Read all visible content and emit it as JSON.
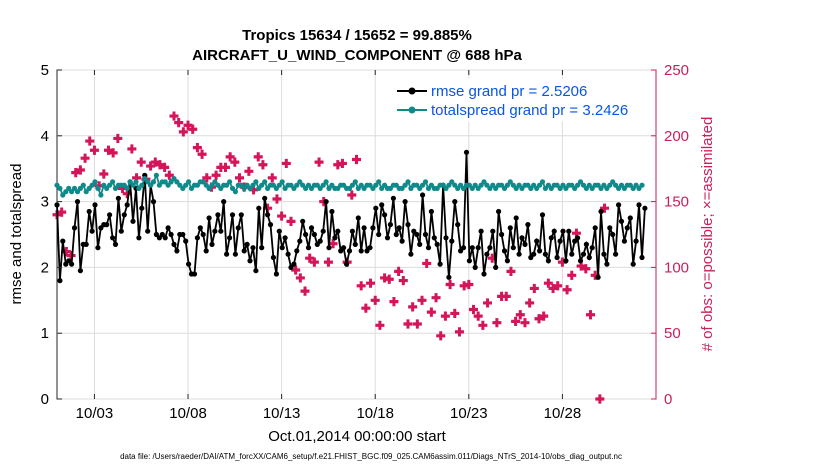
{
  "chart_data": {
    "type": "line",
    "title": "Tropics 15634 / 15652 = 99.885%",
    "subtitle": "AIRCRAFT_U_WIND_COMPONENT @ 688 hPa",
    "xlabel": "Oct.01,2014 00:00:00 start",
    "ylabel_left": "rmse and totalspread",
    "ylabel_right": "# of obs: o=possible; ×=assimilated",
    "xlim": [
      1.0,
      33.0
    ],
    "ylim_left": [
      0,
      5
    ],
    "ylim_right": [
      0,
      250
    ],
    "x_ticks": [
      3,
      8,
      13,
      18,
      23,
      28
    ],
    "x_tick_labels": [
      "10/03",
      "10/08",
      "10/13",
      "10/18",
      "10/23",
      "10/28"
    ],
    "y_ticks_left": [
      0,
      1,
      2,
      3,
      4,
      5
    ],
    "y_ticks_right": [
      0,
      50,
      100,
      150,
      200,
      250
    ],
    "grid": true,
    "legend": "top-right",
    "series": [
      {
        "name": "rmse grand pr = 2.5206",
        "color": "#000000",
        "axis": "left",
        "values": [
          2.95,
          1.8,
          2.4,
          2.05,
          2.1,
          2.05,
          2.6,
          3.0,
          1.95,
          2.35,
          2.35,
          2.85,
          2.55,
          2.95,
          2.3,
          2.6,
          2.65,
          2.65,
          2.8,
          2.45,
          2.35,
          3.05,
          2.55,
          2.8,
          2.95,
          3.3,
          2.7,
          3.2,
          2.45,
          2.9,
          3.4,
          2.55,
          3.25,
          3.0,
          2.5,
          2.45,
          2.5,
          2.45,
          2.6,
          2.5,
          2.35,
          2.25,
          2.5,
          2.5,
          2.4,
          2.05,
          1.9,
          1.9,
          2.45,
          2.6,
          2.5,
          2.25,
          2.75,
          2.35,
          2.55,
          2.8,
          2.55,
          3.0,
          2.2,
          2.45,
          2.8,
          2.2,
          2.6,
          2.8,
          2.25,
          2.35,
          2.1,
          2.3,
          1.95,
          2.9,
          2.3,
          3.05,
          2.8,
          2.65,
          2.15,
          1.9,
          2.55,
          2.3,
          2.45,
          2.2,
          2.0,
          2.05,
          2.25,
          2.4,
          2.7,
          2.5,
          2.3,
          2.6,
          2.5,
          2.35,
          2.4,
          2.55,
          3.0,
          2.3,
          2.85,
          2.45,
          2.55,
          2.25,
          2.3,
          2.05,
          2.25,
          2.55,
          2.35,
          2.75,
          2.25,
          2.6,
          2.25,
          2.3,
          2.6,
          2.9,
          2.5,
          2.95,
          2.8,
          2.45,
          2.65,
          3.05,
          2.5,
          2.6,
          2.4,
          3.0,
          2.65,
          2.2,
          2.55,
          2.5,
          2.35,
          3.1,
          2.5,
          2.3,
          2.85,
          2.45,
          2.35,
          2.05,
          3.25,
          2.45,
          1.85,
          2.4,
          3.0,
          2.65,
          2.25,
          2.3,
          3.75,
          2.1,
          2.3,
          2.0,
          2.3,
          2.55,
          1.9,
          2.2,
          2.3,
          2.55,
          2.0,
          2.85,
          2.5,
          2.25,
          2.1,
          2.6,
          2.3,
          2.75,
          2.2,
          2.45,
          2.35,
          2.65,
          2.15,
          2.2,
          2.4,
          2.25,
          2.8,
          2.2,
          2.1,
          2.45,
          2.55,
          2.15,
          2.4,
          2.55,
          2.1,
          2.55,
          2.2,
          2.4,
          2.45,
          2.1,
          2.2,
          2.35,
          2.15,
          2.3,
          2.6,
          1.85,
          2.85,
          2.2,
          2.05,
          2.6,
          2.5,
          2.2,
          2.95,
          2.7,
          2.4,
          2.6,
          2.75,
          2.05,
          2.4,
          2.95,
          2.15,
          2.9
        ],
        "x_start": 1.0,
        "x_step": 0.15625
      },
      {
        "name": "totalspread grand pr = 3.2426",
        "color": "#0e8a8a",
        "axis": "left",
        "values": [
          3.25,
          3.2,
          3.1,
          3.15,
          3.2,
          3.15,
          3.2,
          3.15,
          3.2,
          3.25,
          3.15,
          3.2,
          3.25,
          3.3,
          3.2,
          3.1,
          3.25,
          3.2,
          3.25,
          3.3,
          3.2,
          3.25,
          3.25,
          3.25,
          3.2,
          3.3,
          3.25,
          3.3,
          3.2,
          3.25,
          3.35,
          3.3,
          3.25,
          3.3,
          3.4,
          3.25,
          3.3,
          3.3,
          3.25,
          3.3,
          3.35,
          3.3,
          3.25,
          3.2,
          3.25,
          3.3,
          3.2,
          3.25,
          3.25,
          3.3,
          3.3,
          3.25,
          3.2,
          3.25,
          3.3,
          3.25,
          3.2,
          3.25,
          3.25,
          3.3,
          3.2,
          3.15,
          3.25,
          3.25,
          3.2,
          3.25,
          3.2,
          3.25,
          3.3,
          3.2,
          3.25,
          3.3,
          3.2,
          3.25,
          3.25,
          3.2,
          3.25,
          3.3,
          3.2,
          3.25,
          3.25,
          3.2,
          3.25,
          3.3,
          3.25,
          3.2,
          3.25,
          3.2,
          3.25,
          3.25,
          3.2,
          3.25,
          3.3,
          3.2,
          3.25,
          3.2,
          3.2,
          3.25,
          3.25,
          3.2,
          3.2,
          3.25,
          3.3,
          3.2,
          3.25,
          3.2,
          3.25,
          3.25,
          3.2,
          3.25,
          3.3,
          3.2,
          3.25,
          3.2,
          3.2,
          3.25,
          3.25,
          3.2,
          3.2,
          3.25,
          3.3,
          3.2,
          3.25,
          3.25,
          3.2,
          3.25,
          3.3,
          3.2,
          3.25,
          3.2,
          3.2,
          3.25,
          3.25,
          3.2,
          3.25,
          3.3,
          3.25,
          3.2,
          3.25,
          3.2,
          3.25,
          3.25,
          3.2,
          3.25,
          3.2,
          3.25,
          3.3,
          3.25,
          3.2,
          3.25,
          3.2,
          3.25,
          3.25,
          3.2,
          3.25,
          3.3,
          3.25,
          3.2,
          3.25,
          3.2,
          3.25,
          3.25,
          3.2,
          3.25,
          3.2,
          3.25,
          3.3,
          3.2,
          3.25,
          3.2,
          3.25,
          3.25,
          3.2,
          3.25,
          3.2,
          3.25,
          3.25,
          3.2,
          3.25,
          3.3,
          3.25,
          3.2,
          3.25,
          3.2,
          3.25,
          3.25,
          3.2,
          3.25,
          3.2,
          3.25,
          3.3,
          3.25,
          3.2,
          3.25,
          3.2,
          3.25,
          3.25,
          3.2,
          3.25,
          3.2,
          3.25
        ],
        "x_start": 1.0,
        "x_step": 0.15625
      }
    ],
    "obs_counts": {
      "color": "#d4155a",
      "axis": "right",
      "x_start": 1.0,
      "x_step": 0.25,
      "values": [
        140,
        142,
        112,
        109,
        172,
        174,
        183,
        196,
        189,
        162,
        171,
        189,
        187,
        198,
        160,
        156,
        190,
        168,
        180,
        167,
        177,
        180,
        178,
        176,
        170,
        215,
        210,
        203,
        208,
        205,
        191,
        186,
        168,
        161,
        170,
        176,
        176,
        184,
        180,
        168,
        161,
        173,
        159,
        184,
        178,
        145,
        168,
        152,
        139,
        179,
        135,
        98,
        92,
        82,
        107,
        104,
        180,
        150,
        104,
        118,
        178,
        179,
        104,
        155,
        182,
        86,
        69,
        88,
        75,
        56,
        92,
        91,
        74,
        97,
        90,
        57,
        70,
        57,
        75,
        103,
        66,
        77,
        48,
        63,
        87,
        65,
        51,
        86,
        87,
        68,
        63,
        56,
        73,
        107,
        58,
        78,
        78,
        97,
        59,
        64,
        58,
        73,
        84,
        61,
        63,
        88,
        84,
        86,
        104,
        83,
        94,
        126,
        101,
        99,
        64,
        94,
        0,
        145
      ]
    },
    "legend_entries": [
      "rmse grand pr = 2.5206",
      "totalspread grand pr = 3.2426"
    ],
    "footer_note": "data file: /Users/raeder/DAI/ATM_forcXX/CAM6_setup/f.e21.FHIST_BGC.f09_025.CAM6assim.011/Diags_NTrS_2014-10/obs_diag_output.nc"
  }
}
